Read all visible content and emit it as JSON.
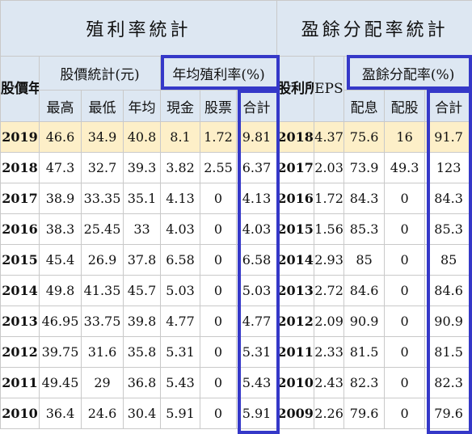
{
  "sections": {
    "yield_stats": "殖利率統計",
    "payout_stats": "盈餘分配率統計"
  },
  "headers": {
    "stock_year": "股價年度",
    "price_stats": "股價統計(元)",
    "avg_yield": "年均殖利率(%)",
    "profit_period": "股利所屬期間",
    "eps": "EPS(元)",
    "payout_ratio": "盈餘分配率(%)",
    "high": "最高",
    "low": "最低",
    "avg": "年均",
    "cash": "現金",
    "stock": "股票",
    "total": "合計",
    "payout_cash": "配息",
    "payout_stock": "配股",
    "payout_total": "合計"
  },
  "rows": [
    {
      "year": "2019",
      "high": "46.6",
      "low": "34.9",
      "avg": "40.8",
      "cash": "8.1",
      "stock": "1.72",
      "total": "9.81",
      "period": "2018",
      "eps": "4.37",
      "payout_cash": "75.6",
      "payout_stock": "16",
      "payout_total": "91.7"
    },
    {
      "year": "2018",
      "high": "47.3",
      "low": "32.7",
      "avg": "39.3",
      "cash": "3.82",
      "stock": "2.55",
      "total": "6.37",
      "period": "2017",
      "eps": "2.03",
      "payout_cash": "73.9",
      "payout_stock": "49.3",
      "payout_total": "123"
    },
    {
      "year": "2017",
      "high": "38.9",
      "low": "33.35",
      "avg": "35.1",
      "cash": "4.13",
      "stock": "0",
      "total": "4.13",
      "period": "2016",
      "eps": "1.72",
      "payout_cash": "84.3",
      "payout_stock": "0",
      "payout_total": "84.3"
    },
    {
      "year": "2016",
      "high": "38.3",
      "low": "25.45",
      "avg": "33",
      "cash": "4.03",
      "stock": "0",
      "total": "4.03",
      "period": "2015",
      "eps": "1.56",
      "payout_cash": "85.3",
      "payout_stock": "0",
      "payout_total": "85.3"
    },
    {
      "year": "2015",
      "high": "45.4",
      "low": "26.9",
      "avg": "37.8",
      "cash": "6.58",
      "stock": "0",
      "total": "6.58",
      "period": "2014",
      "eps": "2.93",
      "payout_cash": "85",
      "payout_stock": "0",
      "payout_total": "85"
    },
    {
      "year": "2014",
      "high": "49.8",
      "low": "41.35",
      "avg": "45.7",
      "cash": "5.03",
      "stock": "0",
      "total": "5.03",
      "period": "2013",
      "eps": "2.72",
      "payout_cash": "84.6",
      "payout_stock": "0",
      "payout_total": "84.6"
    },
    {
      "year": "2013",
      "high": "46.95",
      "low": "33.75",
      "avg": "39.8",
      "cash": "4.77",
      "stock": "0",
      "total": "4.77",
      "period": "2012",
      "eps": "2.09",
      "payout_cash": "90.9",
      "payout_stock": "0",
      "payout_total": "90.9"
    },
    {
      "year": "2012",
      "high": "39.75",
      "low": "31.6",
      "avg": "35.8",
      "cash": "5.31",
      "stock": "0",
      "total": "5.31",
      "period": "2011",
      "eps": "2.33",
      "payout_cash": "81.5",
      "payout_stock": "0",
      "payout_total": "81.5"
    },
    {
      "year": "2011",
      "high": "49.45",
      "low": "29",
      "avg": "36.8",
      "cash": "5.43",
      "stock": "0",
      "total": "5.43",
      "period": "2010",
      "eps": "2.43",
      "payout_cash": "82.3",
      "payout_stock": "0",
      "payout_total": "82.3"
    },
    {
      "year": "2010",
      "high": "36.4",
      "low": "24.6",
      "avg": "30.4",
      "cash": "5.91",
      "stock": "0",
      "total": "5.91",
      "period": "2009",
      "eps": "2.26",
      "payout_cash": "79.6",
      "payout_stock": "0",
      "payout_total": "79.6"
    }
  ],
  "colors": {
    "header_bg": "#dde7f2",
    "highlight_row": "#fdefc8",
    "box_border": "#3538c8"
  }
}
